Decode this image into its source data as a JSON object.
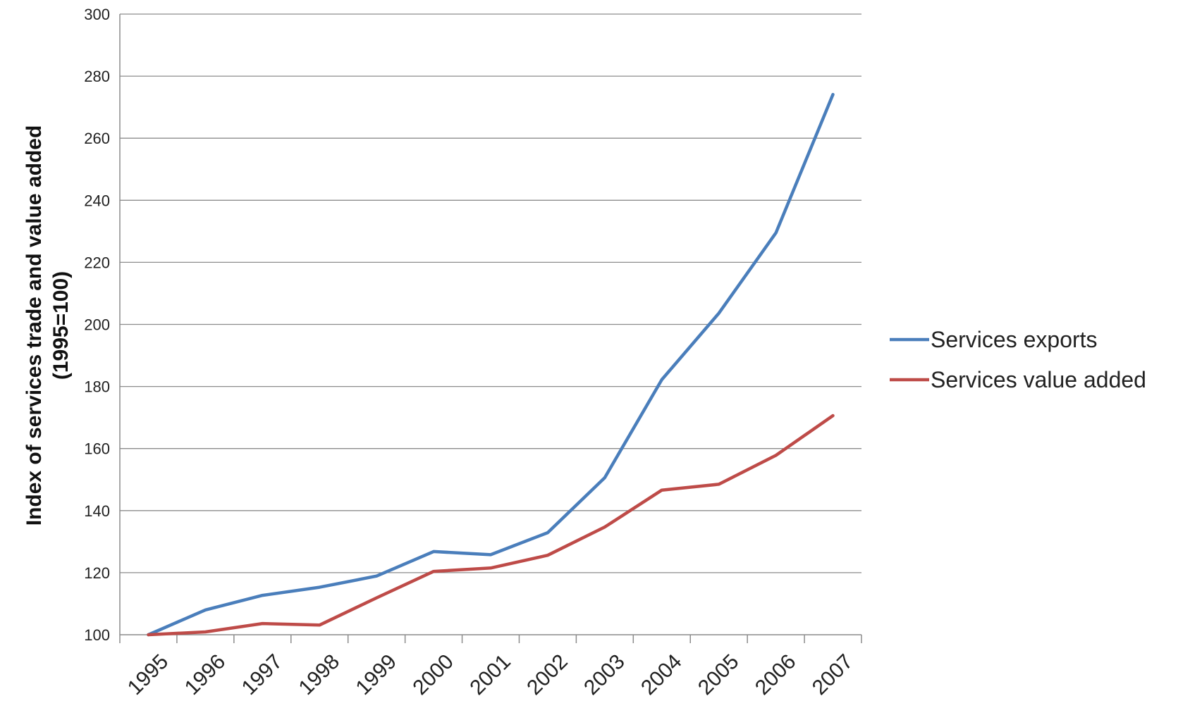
{
  "chart_data": {
    "type": "line",
    "title": "",
    "xlabel": "",
    "ylabel_line1": "Index of services trade and value added",
    "ylabel_line2": "(1995=100)",
    "categories": [
      "1995",
      "1996",
      "1997",
      "1998",
      "1999",
      "2000",
      "2001",
      "2002",
      "2003",
      "2004",
      "2005",
      "2006",
      "2007"
    ],
    "ylim": [
      100,
      300
    ],
    "yticks": [
      100,
      120,
      140,
      160,
      180,
      200,
      220,
      240,
      260,
      280,
      300
    ],
    "grid": true,
    "legend_position": "right",
    "series": [
      {
        "name": "Services exports",
        "color": "#4a7ebb",
        "values": [
          100,
          108,
          112.7,
          115.3,
          118.9,
          126.8,
          125.8,
          132.9,
          150.6,
          182.2,
          203.6,
          229.5,
          274.1
        ]
      },
      {
        "name": "Services value added",
        "color": "#be4b48",
        "values": [
          100,
          100.9,
          103.6,
          103.1,
          111.9,
          120.4,
          121.5,
          125.6,
          134.7,
          146.6,
          148.5,
          157.8,
          170.6
        ]
      }
    ]
  }
}
